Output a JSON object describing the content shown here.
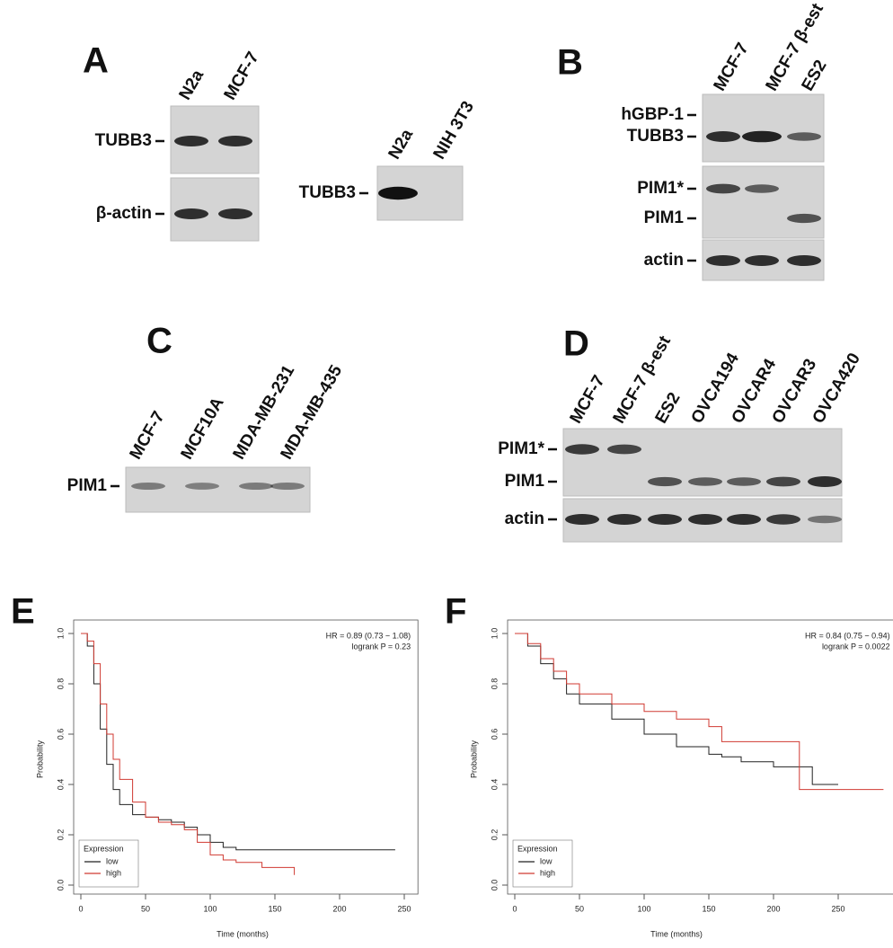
{
  "panels": [
    {
      "letter": "A",
      "blots": [
        {
          "lanes": [
            "N2a",
            "MCF-7"
          ],
          "rows": [
            "TUBB3",
            "β-actin"
          ]
        },
        {
          "lanes": [
            "N2a",
            "NIH 3T3"
          ],
          "rows": [
            "TUBB3"
          ]
        }
      ]
    },
    {
      "letter": "B",
      "blots": [
        {
          "lanes": [
            "MCF-7",
            "MCF-7 β-est",
            "ES2"
          ],
          "rows": [
            "hGBP-1",
            "TUBB3",
            "PIM1*",
            "PIM1",
            "actin"
          ]
        }
      ]
    },
    {
      "letter": "C",
      "blots": [
        {
          "lanes": [
            "MCF-7",
            "MCF10A",
            "MDA-MB-231",
            "MDA-MB-435"
          ],
          "rows": [
            "PIM1"
          ]
        }
      ]
    },
    {
      "letter": "D",
      "blots": [
        {
          "lanes": [
            "MCF-7",
            "MCF-7 β-est",
            "ES2",
            "OVCA194",
            "OVCAR4",
            "OVCAR3",
            "OVCA420"
          ],
          "rows": [
            "PIM1*",
            "PIM1",
            "actin"
          ]
        }
      ]
    }
  ],
  "chart_data": [
    {
      "type": "step",
      "panel": "E",
      "annotations": [
        "HR = 0.89 (0.73 − 1.08)",
        "logrank P = 0.23"
      ],
      "x_label": "Time (months)",
      "y_label": "Probability",
      "legend_title": "Expression",
      "legend": "bottom-left",
      "x": [
        0,
        5,
        10,
        15,
        20,
        25,
        30,
        40,
        50,
        60,
        70,
        80,
        90,
        100,
        110,
        120,
        140,
        165,
        243
      ],
      "series": [
        {
          "name": "low",
          "color": "#222222",
          "values": [
            1.0,
            0.95,
            0.8,
            0.62,
            0.48,
            0.38,
            0.32,
            0.28,
            0.27,
            0.26,
            0.25,
            0.23,
            0.2,
            0.17,
            0.15,
            0.14,
            0.14,
            0.14,
            0.14
          ]
        },
        {
          "name": "high",
          "color": "#d03a32",
          "values": [
            1.0,
            0.97,
            0.88,
            0.72,
            0.6,
            0.5,
            0.42,
            0.33,
            0.27,
            0.25,
            0.24,
            0.22,
            0.17,
            0.12,
            0.1,
            0.09,
            0.07,
            0.04,
            null
          ]
        }
      ],
      "xlim": [
        0,
        255
      ],
      "ylim": [
        0,
        1
      ],
      "xticks": [
        0,
        50,
        100,
        150,
        200,
        250
      ],
      "yticks": [
        {
          "value": 0,
          "label": "0.0"
        },
        0.2,
        0.4,
        0.6,
        0.8,
        {
          "value": 1,
          "label": "1.0"
        }
      ]
    },
    {
      "type": "step",
      "panel": "F",
      "annotations": [
        "HR = 0.84 (0.75 − 0.94)",
        "logrank P = 0.0022"
      ],
      "x_label": "Time (months)",
      "y_label": "Probability",
      "legend_title": "Expression",
      "legend": "bottom-left",
      "x": [
        0,
        10,
        20,
        30,
        40,
        50,
        75,
        100,
        125,
        150,
        160,
        175,
        200,
        220,
        230,
        250,
        285
      ],
      "series": [
        {
          "name": "low",
          "color": "#222222",
          "values": [
            1.0,
            0.95,
            0.88,
            0.82,
            0.76,
            0.72,
            0.66,
            0.6,
            0.55,
            0.52,
            0.51,
            0.49,
            0.47,
            0.47,
            0.4,
            0.4,
            null
          ]
        },
        {
          "name": "high",
          "color": "#d03a32",
          "values": [
            1.0,
            0.96,
            0.9,
            0.85,
            0.8,
            0.76,
            0.72,
            0.69,
            0.66,
            0.63,
            0.57,
            0.57,
            0.57,
            0.38,
            0.38,
            0.38,
            0.38
          ]
        }
      ],
      "xlim": [
        0,
        290
      ],
      "ylim": [
        0,
        1
      ],
      "xticks": [
        0,
        50,
        100,
        150,
        200,
        250
      ],
      "yticks": [
        {
          "value": 0,
          "label": "0.0"
        },
        0.2,
        0.4,
        0.6,
        0.8,
        {
          "value": 1,
          "label": "1.0"
        }
      ]
    }
  ]
}
